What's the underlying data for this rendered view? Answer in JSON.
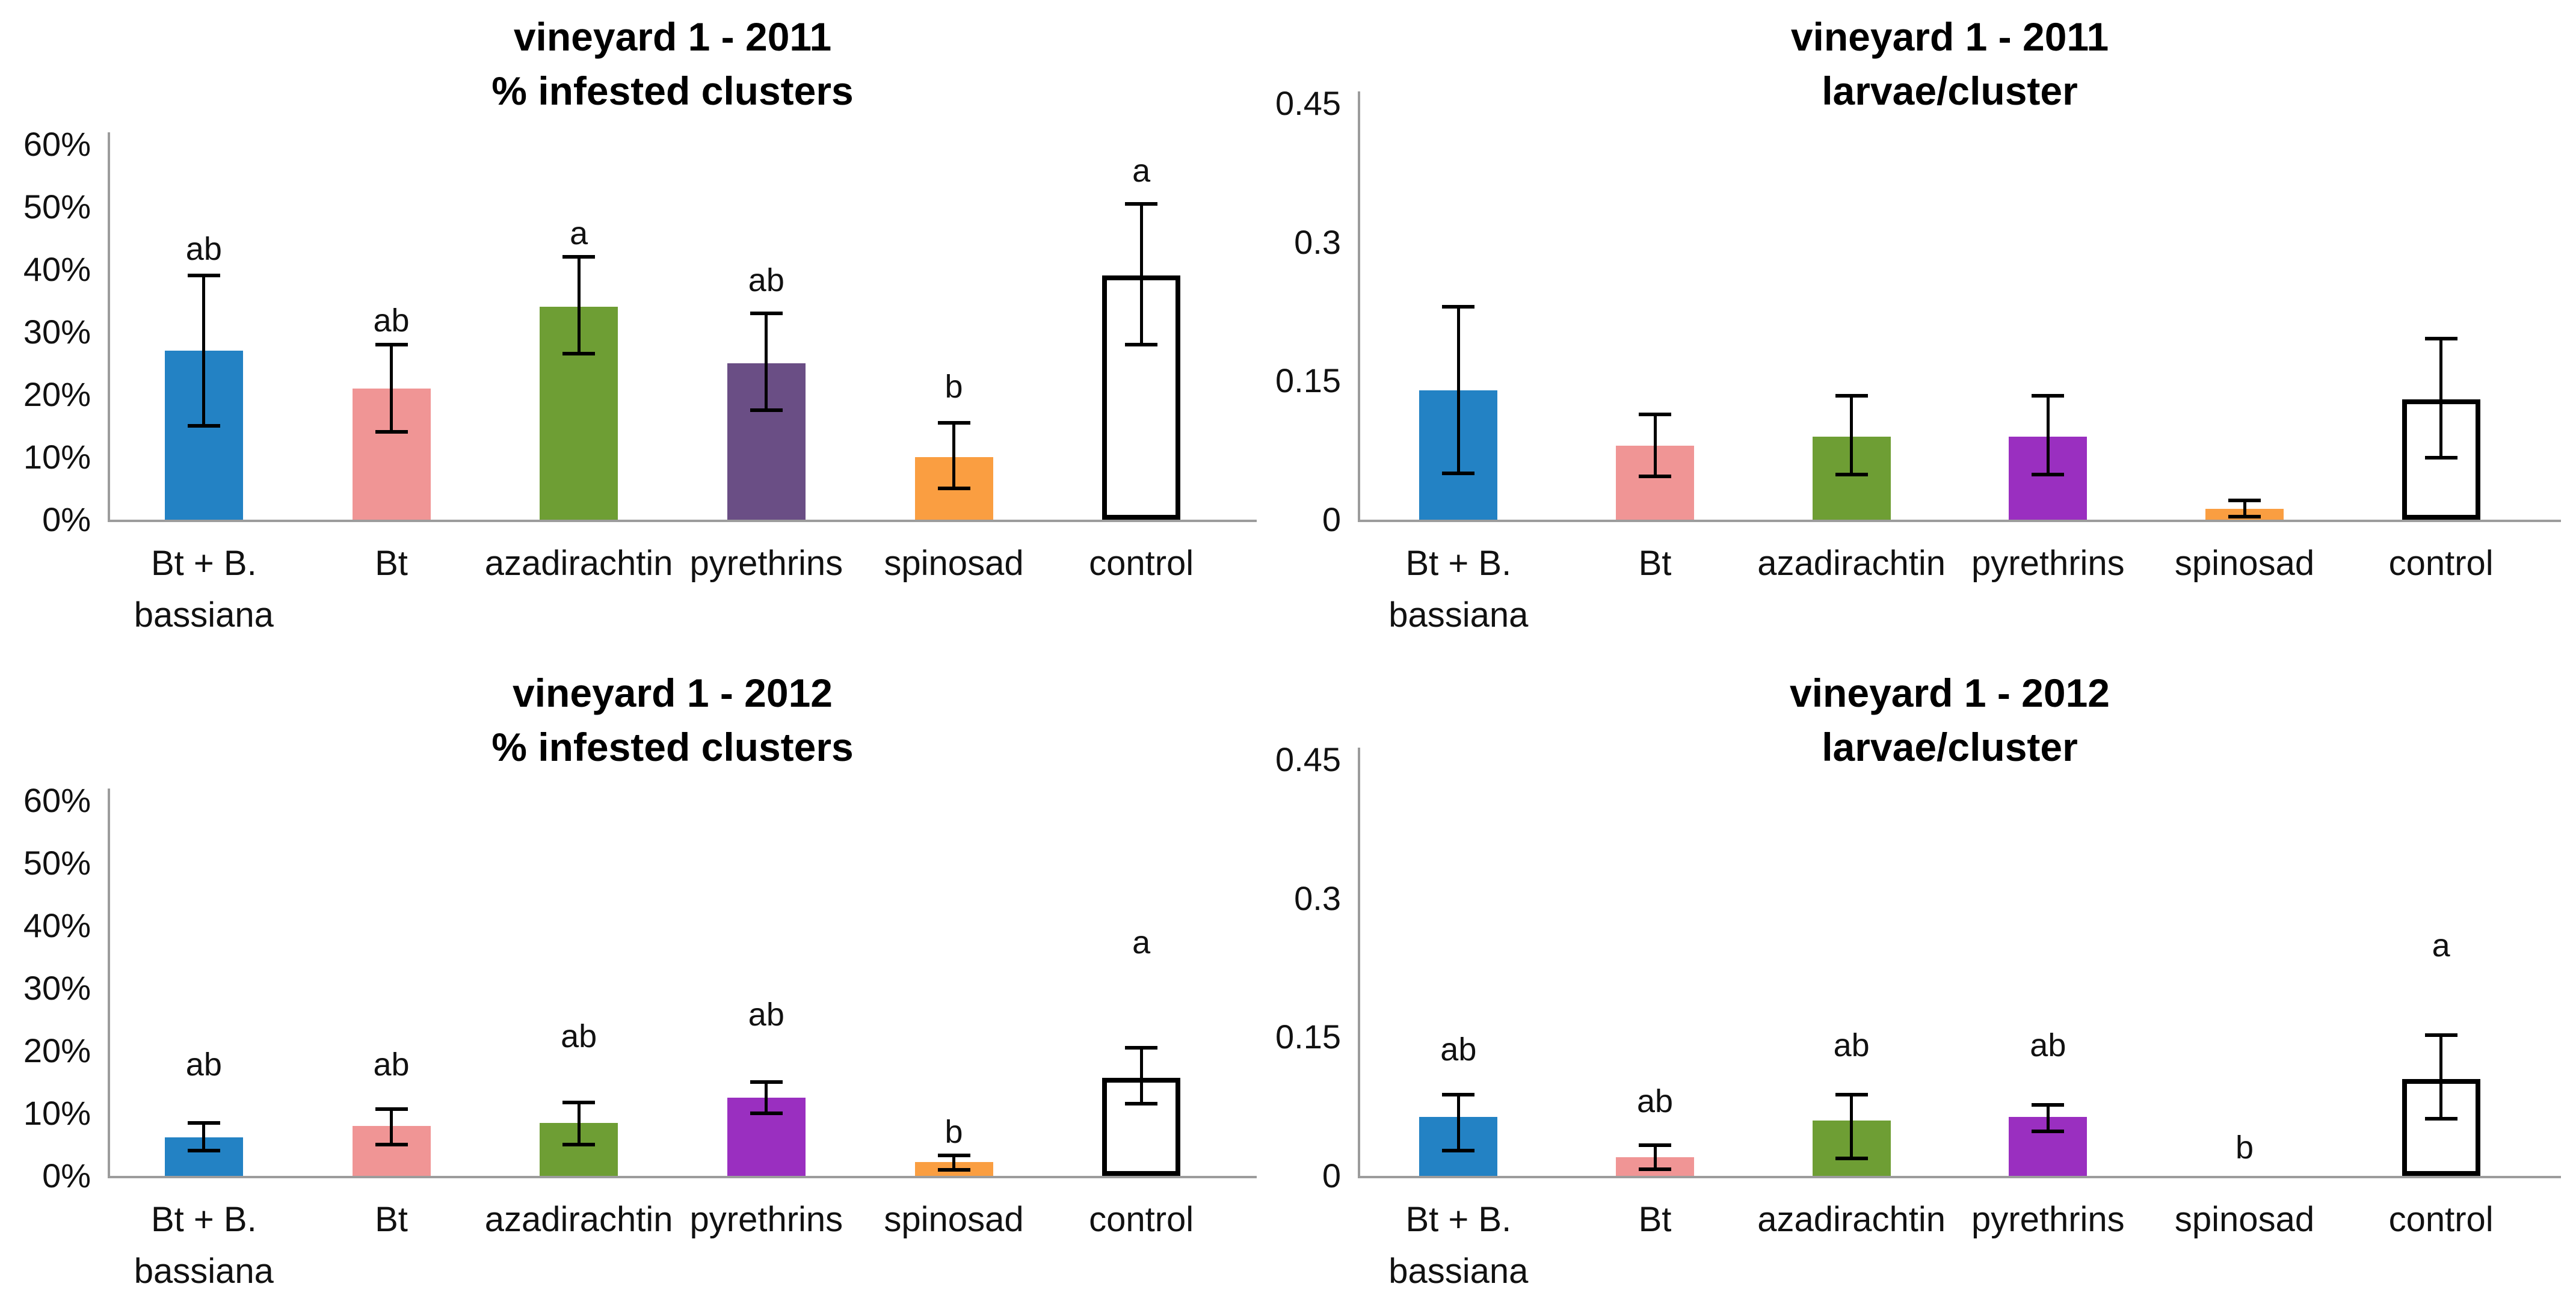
{
  "figure": {
    "axis_color": "#9C9C9C",
    "error_bar_color": "#000000",
    "control_bar_border": "#000000",
    "layout": "2x2 grid of bar charts"
  },
  "chart_data": [
    {
      "type": "bar",
      "title": "vineyard 1 - 2011",
      "subtitle": "% infested clusters",
      "categories": [
        "Bt + B. bassiana",
        "Bt",
        "azadirachtin",
        "pyrethrins",
        "spinosad",
        "control"
      ],
      "x_label_lines": [
        [
          "Bt + B.",
          "bassiana"
        ],
        [
          "Bt"
        ],
        [
          "azadirachtin"
        ],
        [
          "pyrethrins"
        ],
        [
          "spinosad"
        ],
        [
          "control"
        ]
      ],
      "values": [
        27,
        21,
        34,
        25,
        10,
        39
      ],
      "error_low": [
        15,
        14,
        26.5,
        17.5,
        5,
        28
      ],
      "error_high": [
        39,
        28,
        42,
        33,
        15.5,
        50.5
      ],
      "sig_letters": [
        "ab",
        "ab",
        "a",
        "ab",
        "b",
        "a"
      ],
      "letter_y": [
        40.5,
        29,
        43,
        35.5,
        18.5,
        53
      ],
      "bar_colors": [
        "#2382C4",
        "#F09595",
        "#6E9E34",
        "#6A4E85",
        "#FA9E41",
        "#FFFFFF"
      ],
      "ylim": [
        0,
        60
      ],
      "yticks": [
        {
          "value": 0,
          "label": "0%"
        },
        {
          "value": 10,
          "label": "10%"
        },
        {
          "value": 20,
          "label": "20%"
        },
        {
          "value": 30,
          "label": "30%"
        },
        {
          "value": 40,
          "label": "40%"
        },
        {
          "value": 50,
          "label": "50%"
        },
        {
          "value": 60,
          "label": "60%"
        }
      ],
      "grid": false,
      "legend": false
    },
    {
      "type": "bar",
      "title": "vineyard 1 - 2011",
      "subtitle": "larvae/cluster",
      "categories": [
        "Bt + B. bassiana",
        "Bt",
        "azadirachtin",
        "pyrethrins",
        "spinosad",
        "control"
      ],
      "x_label_lines": [
        [
          "Bt + B.",
          "bassiana"
        ],
        [
          "Bt"
        ],
        [
          "azadirachtin"
        ],
        [
          "pyrethrins"
        ],
        [
          "spinosad"
        ],
        [
          "control"
        ]
      ],
      "values": [
        0.14,
        0.08,
        0.09,
        0.09,
        0.012,
        0.13
      ],
      "error_low": [
        0.05,
        0.047,
        0.049,
        0.049,
        0.003,
        0.067
      ],
      "error_high": [
        0.23,
        0.114,
        0.134,
        0.134,
        0.021,
        0.196
      ],
      "sig_letters": [],
      "letter_y": [],
      "bar_colors": [
        "#2382C4",
        "#F09595",
        "#6E9E34",
        "#9A2FC0",
        "#FA9E41",
        "#FFFFFF"
      ],
      "ylim": [
        0,
        0.45
      ],
      "yticks": [
        {
          "value": 0,
          "label": "0"
        },
        {
          "value": 0.15,
          "label": "0.15"
        },
        {
          "value": 0.3,
          "label": "0.3"
        },
        {
          "value": 0.45,
          "label": "0.45"
        }
      ],
      "grid": false,
      "legend": false
    },
    {
      "type": "bar",
      "title": "vineyard 1 - 2012",
      "subtitle": "% infested clusters",
      "categories": [
        "Bt + B. bassiana",
        "Bt",
        "azadirachtin",
        "pyrethrins",
        "spinosad",
        "control"
      ],
      "x_label_lines": [
        [
          "Bt + B.",
          "bassiana"
        ],
        [
          "Bt"
        ],
        [
          "azadirachtin"
        ],
        [
          "pyrethrins"
        ],
        [
          "spinosad"
        ],
        [
          "control"
        ]
      ],
      "values": [
        6.2,
        8,
        8.5,
        12.5,
        2.2,
        15.7
      ],
      "error_low": [
        4,
        5,
        5,
        10,
        1,
        11.5
      ],
      "error_high": [
        8.5,
        10.7,
        11.7,
        15,
        3.3,
        20.5
      ],
      "sig_letters": [
        "ab",
        "ab",
        "ab",
        "ab",
        "b",
        "a"
      ],
      "letter_y": [
        15,
        15,
        19.5,
        23,
        4.2,
        34.5
      ],
      "bar_colors": [
        "#2382C4",
        "#F09595",
        "#6E9E34",
        "#9A2FC0",
        "#FA9E41",
        "#FFFFFF"
      ],
      "ylim": [
        0,
        60
      ],
      "yticks": [
        {
          "value": 0,
          "label": "0%"
        },
        {
          "value": 10,
          "label": "10%"
        },
        {
          "value": 20,
          "label": "20%"
        },
        {
          "value": 30,
          "label": "30%"
        },
        {
          "value": 40,
          "label": "40%"
        },
        {
          "value": 50,
          "label": "50%"
        },
        {
          "value": 60,
          "label": "60%"
        }
      ],
      "grid": false,
      "legend": false
    },
    {
      "type": "bar",
      "title": "vineyard 1 - 2012",
      "subtitle": "larvae/cluster",
      "categories": [
        "Bt + B. bassiana",
        "Bt",
        "azadirachtin",
        "pyrethrins",
        "spinosad",
        "control"
      ],
      "x_label_lines": [
        [
          "Bt + B.",
          "bassiana"
        ],
        [
          "Bt"
        ],
        [
          "azadirachtin"
        ],
        [
          "pyrethrins"
        ],
        [
          "spinosad"
        ],
        [
          "control"
        ]
      ],
      "values": [
        0.064,
        0.02,
        0.06,
        0.064,
        0,
        0.105
      ],
      "error_low": [
        0.027,
        0.007,
        0.019,
        0.048,
        null,
        0.062
      ],
      "error_high": [
        0.088,
        0.033,
        0.088,
        0.077,
        null,
        0.152
      ],
      "sig_letters": [
        "ab",
        "ab",
        "ab",
        "ab",
        "b",
        "a"
      ],
      "letter_y": [
        0.118,
        0.062,
        0.122,
        0.122,
        0.012,
        0.23
      ],
      "bar_colors": [
        "#2382C4",
        "#F09595",
        "#6E9E34",
        "#9A2FC0",
        "#FA9E41",
        "#FFFFFF"
      ],
      "ylim": [
        0,
        0.45
      ],
      "yticks": [
        {
          "value": 0,
          "label": "0"
        },
        {
          "value": 0.15,
          "label": "0.15"
        },
        {
          "value": 0.3,
          "label": "0.3"
        },
        {
          "value": 0.45,
          "label": "0.45"
        }
      ],
      "grid": false,
      "legend": false
    }
  ]
}
